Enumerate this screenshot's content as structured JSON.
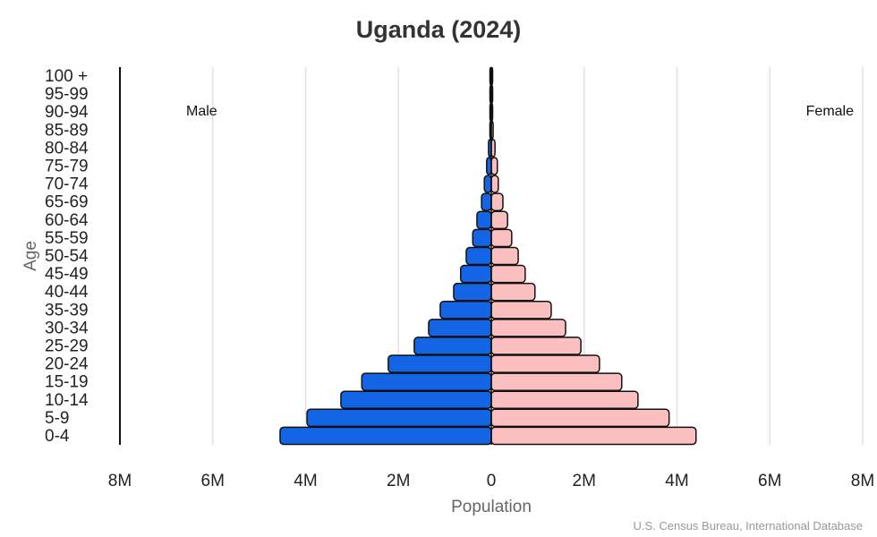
{
  "chart_data": {
    "type": "bar",
    "orientation": "horizontal-population-pyramid",
    "title": "Uganda (2024)",
    "xlabel": "Population",
    "ylabel": "Age",
    "source": "U.S. Census Bureau, International Database",
    "categories": [
      "0-4",
      "5-9",
      "10-14",
      "15-19",
      "20-24",
      "25-29",
      "30-34",
      "35-39",
      "40-44",
      "45-49",
      "50-54",
      "55-59",
      "60-64",
      "65-69",
      "70-74",
      "75-79",
      "80-84",
      "85-89",
      "90-94",
      "95-99",
      "100 +"
    ],
    "series": [
      {
        "name": "Male",
        "color": "#1464e6",
        "values": [
          4.55,
          3.97,
          3.24,
          2.79,
          2.22,
          1.66,
          1.35,
          1.1,
          0.81,
          0.66,
          0.54,
          0.4,
          0.31,
          0.21,
          0.15,
          0.1,
          0.06,
          0.03,
          0.01,
          0.005,
          0.002
        ]
      },
      {
        "name": "Female",
        "color": "#fbbfbf",
        "values": [
          4.41,
          3.83,
          3.16,
          2.81,
          2.33,
          1.93,
          1.6,
          1.29,
          0.94,
          0.73,
          0.58,
          0.44,
          0.35,
          0.25,
          0.15,
          0.13,
          0.08,
          0.04,
          0.015,
          0.006,
          0.003
        ]
      }
    ],
    "units": "millions",
    "xlim": [
      -8,
      8
    ],
    "xticks": [
      "8M",
      "6M",
      "4M",
      "2M",
      "0",
      "2M",
      "4M",
      "6M",
      "8M"
    ],
    "grid": true
  }
}
